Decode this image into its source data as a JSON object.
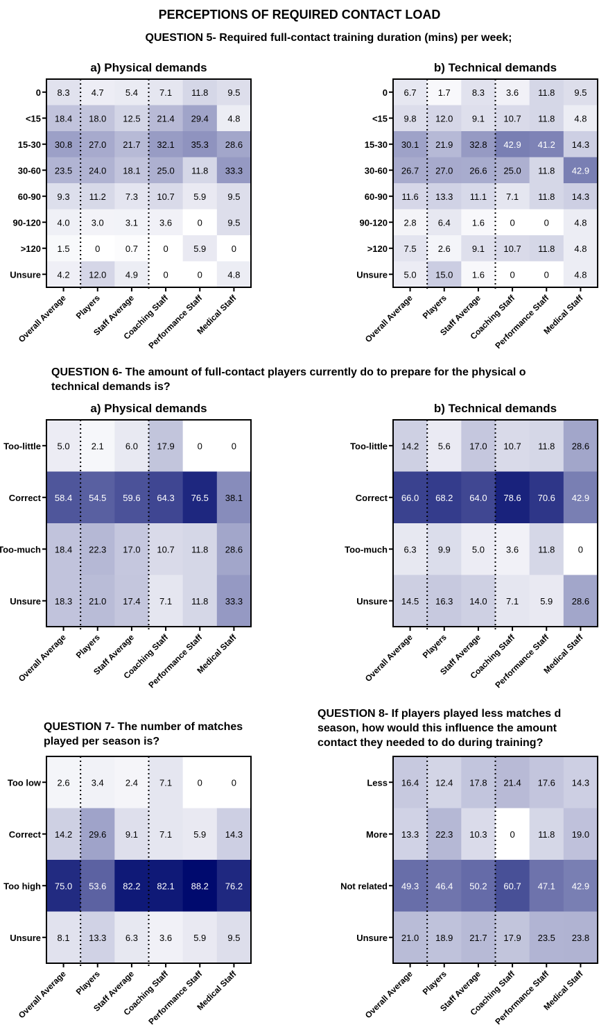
{
  "page_title": "PERCEPTIONS OF REQUIRED CONTACT LOAD",
  "colors": {
    "low": "#ffffff",
    "high": "#000a6e",
    "text_dark": "#000000",
    "text_light": "#ffffff",
    "divider": "#000000"
  },
  "sections": {
    "q5": {
      "title": "QUESTION 5- Required full-contact training duration (mins) per week;"
    },
    "q6": {
      "title_line1": "QUESTION 6- The amount of full-contact players currently do to prepare for the physical o",
      "title_line2": "technical demands is?"
    },
    "q7": {
      "title_line1": "QUESTION 7- The number of matches",
      "title_line2": "played per season is?"
    },
    "q8": {
      "title_line1": "QUESTION 8- If players played less matches d",
      "title_line2": "season, how would this influence the amount",
      "title_line3": "contact they needed to do during training?"
    }
  },
  "chart_data": [
    {
      "id": "q5a",
      "type": "heatmap",
      "title": "a) Physical demands",
      "columns": [
        "Overall Average",
        "Players",
        "Staff Average",
        "Coaching Staff",
        "Performance Staff",
        "Medical Staff"
      ],
      "rows": [
        "0",
        "<15",
        "15-30",
        "30-60",
        "60-90",
        "90-120",
        ">120",
        "Unsure"
      ],
      "values": [
        [
          "8.3",
          "4.7",
          "5.4",
          "7.1",
          "11.8",
          "9.5"
        ],
        [
          "18.4",
          "18.0",
          "12.5",
          "21.4",
          "29.4",
          "4.8"
        ],
        [
          "30.8",
          "27.0",
          "21.7",
          "32.1",
          "35.3",
          "28.6"
        ],
        [
          "23.5",
          "24.0",
          "18.1",
          "25.0",
          "11.8",
          "33.3"
        ],
        [
          "9.3",
          "11.2",
          "7.3",
          "10.7",
          "5.9",
          "9.5"
        ],
        [
          "4.0",
          "3.0",
          "3.1",
          "3.6",
          "0",
          "9.5"
        ],
        [
          "1.5",
          "0",
          "0.7",
          "0",
          "5.9",
          "0"
        ],
        [
          "4.2",
          "12.0",
          "4.9",
          "0",
          "0",
          "4.8"
        ]
      ]
    },
    {
      "id": "q5b",
      "type": "heatmap",
      "title": "b) Technical demands",
      "columns": [
        "Overall Average",
        "Players",
        "Staff Average",
        "Coaching Staff",
        "Performance Staff",
        "Medical Staff"
      ],
      "rows": [
        "0",
        "<15",
        "15-30",
        "30-60",
        "60-90",
        "90-120",
        ">120",
        "Unsure"
      ],
      "values": [
        [
          "6.7",
          "1.7",
          "8.3",
          "3.6",
          "11.8",
          "9.5"
        ],
        [
          "9.8",
          "12.0",
          "9.1",
          "10.7",
          "11.8",
          "4.8"
        ],
        [
          "30.1",
          "21.9",
          "32.8",
          "42.9",
          "41.2",
          "14.3"
        ],
        [
          "26.7",
          "27.0",
          "26.6",
          "25.0",
          "11.8",
          "42.9"
        ],
        [
          "11.6",
          "13.3",
          "11.1",
          "7.1",
          "11.8",
          "14.3"
        ],
        [
          "2.8",
          "6.4",
          "1.6",
          "0",
          "0",
          "4.8"
        ],
        [
          "7.5",
          "2.6",
          "9.1",
          "10.7",
          "11.8",
          "4.8"
        ],
        [
          "5.0",
          "15.0",
          "1.6",
          "0",
          "0",
          "4.8"
        ]
      ]
    },
    {
      "id": "q6a",
      "type": "heatmap",
      "title": "a) Physical demands",
      "columns": [
        "Overall Average",
        "Players",
        "Staff Average",
        "Coaching Staff",
        "Performance Staff",
        "Medical Staff"
      ],
      "rows": [
        "Too-little",
        "Correct",
        "Too-much",
        "Unsure"
      ],
      "values": [
        [
          "5.0",
          "2.1",
          "6.0",
          "17.9",
          "0",
          "0"
        ],
        [
          "58.4",
          "54.5",
          "59.6",
          "64.3",
          "76.5",
          "38.1"
        ],
        [
          "18.4",
          "22.3",
          "17.0",
          "10.7",
          "11.8",
          "28.6"
        ],
        [
          "18.3",
          "21.0",
          "17.4",
          "7.1",
          "11.8",
          "33.3"
        ]
      ]
    },
    {
      "id": "q6b",
      "type": "heatmap",
      "title": "b) Technical demands",
      "columns": [
        "Overall Average",
        "Players",
        "Staff Average",
        "Coaching Staff",
        "Performance Staff",
        "Medical Staff"
      ],
      "rows": [
        "Too-little",
        "Correct",
        "Too-much",
        "Unsure"
      ],
      "values": [
        [
          "14.2",
          "5.6",
          "17.0",
          "10.7",
          "11.8",
          "28.6"
        ],
        [
          "66.0",
          "68.2",
          "64.0",
          "78.6",
          "70.6",
          "42.9"
        ],
        [
          "6.3",
          "9.9",
          "5.0",
          "3.6",
          "11.8",
          "0"
        ],
        [
          "14.5",
          "16.3",
          "14.0",
          "7.1",
          "5.9",
          "28.6"
        ]
      ]
    },
    {
      "id": "q7",
      "type": "heatmap",
      "title": "",
      "columns": [
        "Overall Average",
        "Players",
        "Staff Average",
        "Coaching Staff",
        "Performance Staff",
        "Medical Staff"
      ],
      "rows": [
        "Too low",
        "Correct",
        "Too high",
        "Unsure"
      ],
      "values": [
        [
          "2.6",
          "3.4",
          "2.4",
          "7.1",
          "0",
          "0"
        ],
        [
          "14.2",
          "29.6",
          "9.1",
          "7.1",
          "5.9",
          "14.3"
        ],
        [
          "75.0",
          "53.6",
          "82.2",
          "82.1",
          "88.2",
          "76.2"
        ],
        [
          "8.1",
          "13.3",
          "6.3",
          "3.6",
          "5.9",
          "9.5"
        ]
      ]
    },
    {
      "id": "q8",
      "type": "heatmap",
      "title": "",
      "columns": [
        "Overall Average",
        "Players",
        "Staff Average",
        "Coaching Staff",
        "Performance Staff",
        "Medical Staff"
      ],
      "rows": [
        "Less",
        "More",
        "Not related",
        "Unsure"
      ],
      "values": [
        [
          "16.4",
          "12.4",
          "17.8",
          "21.4",
          "17.6",
          "14.3"
        ],
        [
          "13.3",
          "22.3",
          "10.3",
          "0",
          "11.8",
          "19.0"
        ],
        [
          "49.3",
          "46.4",
          "50.2",
          "60.7",
          "47.1",
          "42.9"
        ],
        [
          "21.0",
          "18.9",
          "21.7",
          "17.9",
          "23.5",
          "23.8"
        ]
      ]
    }
  ]
}
